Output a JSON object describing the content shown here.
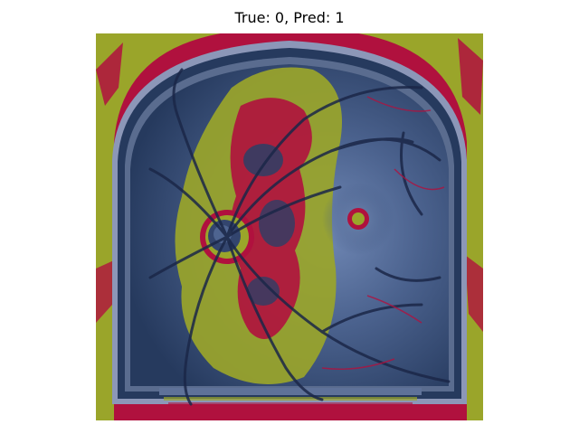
{
  "figure": {
    "title": "True: 0, Pred: 1"
  },
  "image": {
    "subject": "fundus-retina-saliency-overlay",
    "colors": {
      "background_overlay": "#9aa52a",
      "hot_overlay": "#b0113e",
      "retina_base": "#2c3f66",
      "retina_light": "#6d87b3",
      "vessel": "#1b2748",
      "rim": "#8c97b8"
    }
  }
}
